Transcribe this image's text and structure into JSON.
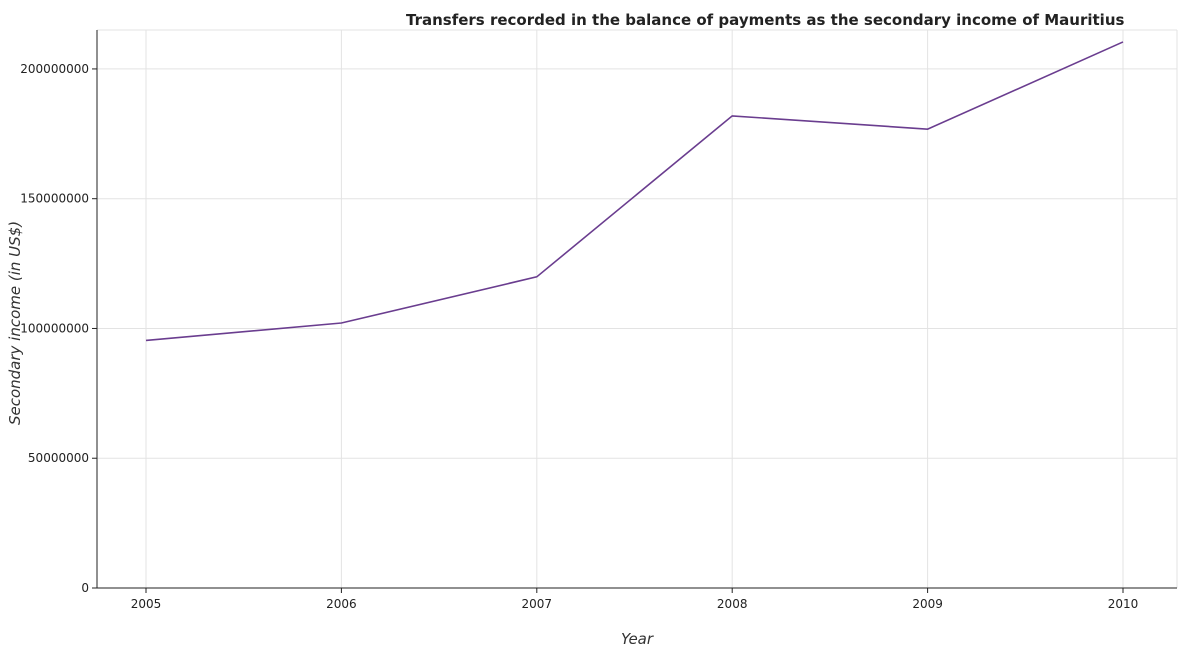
{
  "chart_data": {
    "type": "line",
    "title": "Transfers recorded in the balance of payments as the secondary income of Mauritius",
    "xlabel": "Year",
    "ylabel": "Secondary income (in US$)",
    "categories": [
      "2005",
      "2006",
      "2007",
      "2008",
      "2009",
      "2010"
    ],
    "series": [
      {
        "values": [
          95400000,
          102100000,
          119900000,
          181900000,
          176800000,
          210400000
        ]
      }
    ],
    "yticks": [
      0,
      50000000,
      100000000,
      150000000,
      200000000
    ],
    "ytick_labels": [
      "0",
      "50000000",
      "100000000",
      "150000000",
      "200000000"
    ],
    "ylim": [
      0,
      215000000
    ],
    "grid": true,
    "legend": "none",
    "line_color": "#6a3d8f"
  }
}
